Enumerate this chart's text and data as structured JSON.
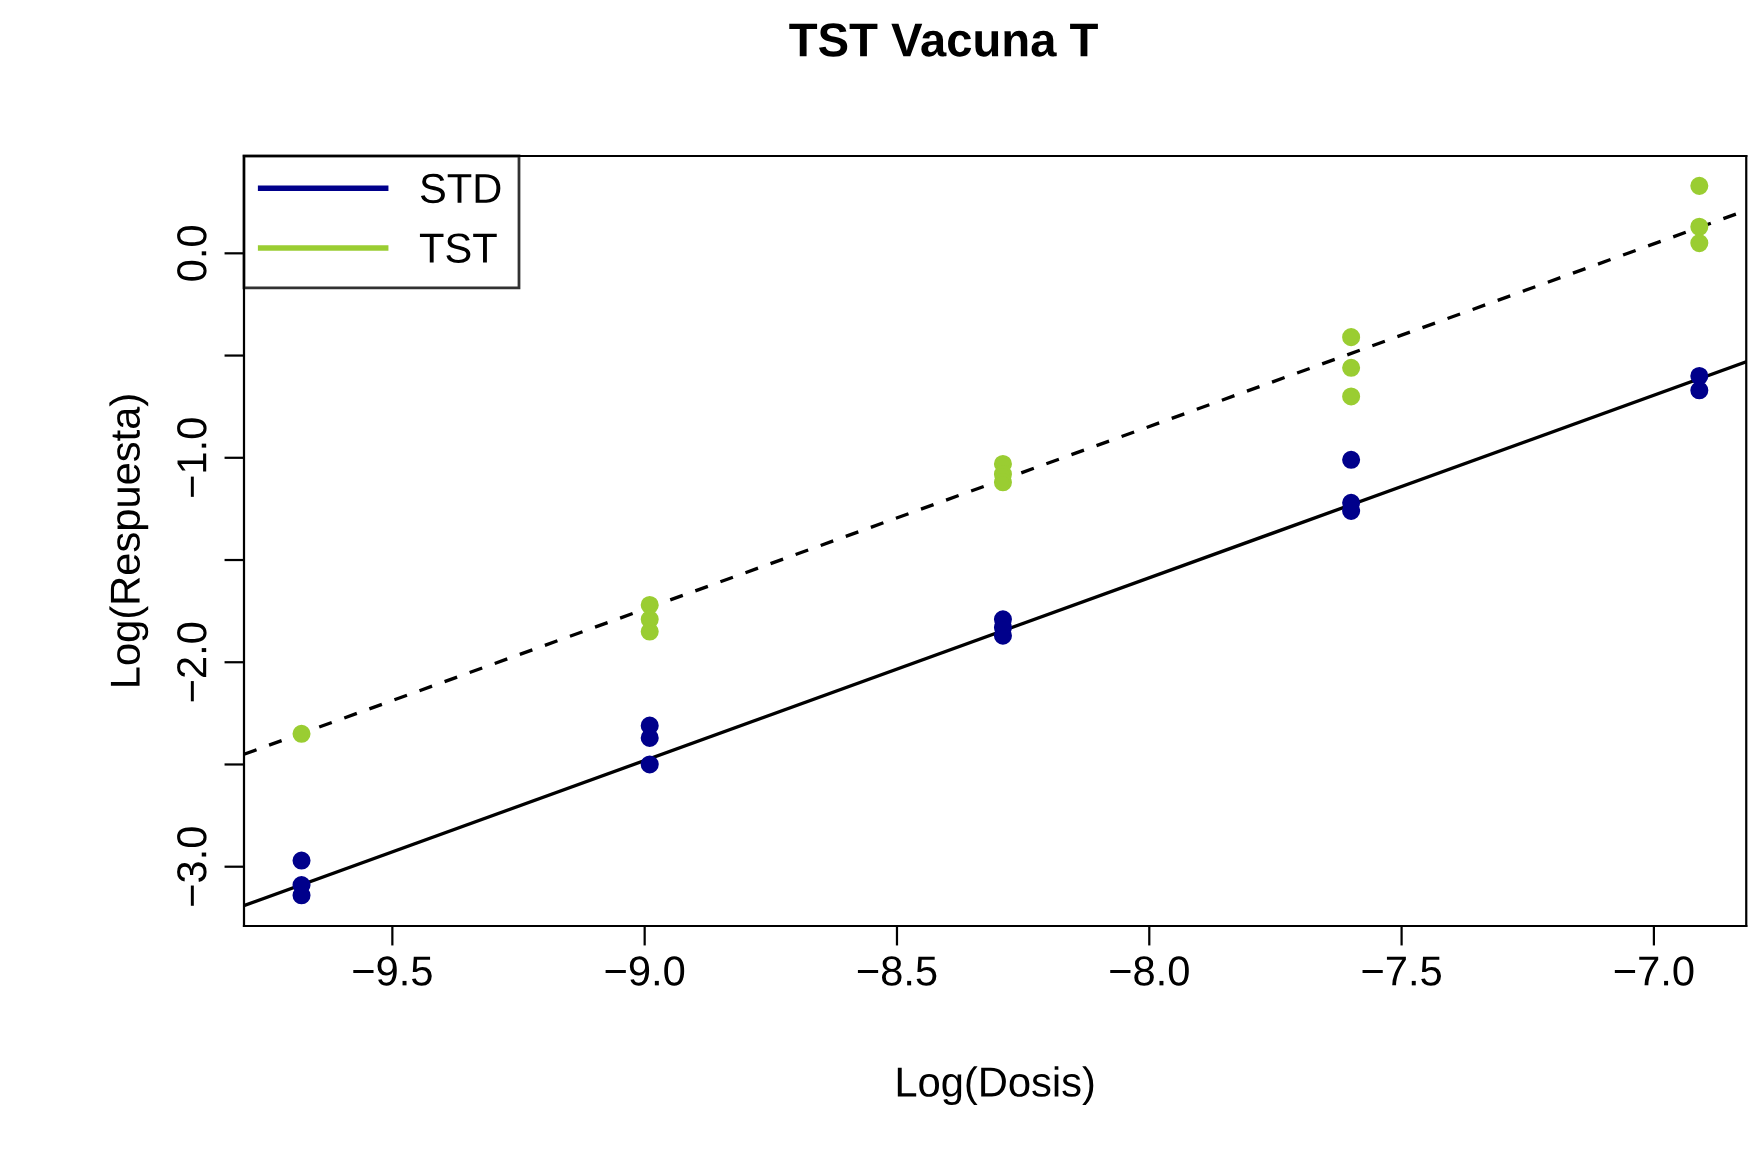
{
  "chart_data": {
    "type": "scatter",
    "title": "TST Vacuna T",
    "xlabel": "Log(Dosis)",
    "ylabel": "Log(Respuesta)",
    "xlim": [
      -9.794,
      -6.817
    ],
    "ylim": [
      -3.29,
      0.476
    ],
    "xticks": [
      {
        "value": -9.5,
        "label": "−9.5"
      },
      {
        "value": -9.0,
        "label": "−9.0"
      },
      {
        "value": -8.5,
        "label": "−8.5"
      },
      {
        "value": -8.0,
        "label": "−8.0"
      },
      {
        "value": -7.5,
        "label": "−7.5"
      },
      {
        "value": -7.0,
        "label": "−7.0"
      }
    ],
    "yticks": [
      {
        "value": 0.0,
        "label": "0.0"
      },
      {
        "value": -0.5,
        "label": null
      },
      {
        "value": -1.0,
        "label": "−1.0"
      },
      {
        "value": -1.5,
        "label": null
      },
      {
        "value": -2.0,
        "label": "−2.0"
      },
      {
        "value": -2.5,
        "label": null
      },
      {
        "value": -3.0,
        "label": "−3.0"
      }
    ],
    "grid": false,
    "legend": "top left",
    "series": [
      {
        "name": "STD",
        "color": "#00008b",
        "marker": "circle",
        "x": [
          -9.68,
          -9.68,
          -9.68,
          -8.99,
          -8.99,
          -8.99,
          -8.29,
          -8.29,
          -8.29,
          -7.6,
          -7.6,
          -7.6,
          -6.91,
          -6.91
        ],
        "values": [
          -2.97,
          -3.09,
          -3.14,
          -2.31,
          -2.37,
          -2.5,
          -1.79,
          -1.83,
          -1.87,
          -1.01,
          -1.22,
          -1.26,
          -0.6,
          -0.67
        ]
      },
      {
        "name": "TST",
        "color": "#9acd32",
        "marker": "circle",
        "x": [
          -9.68,
          -8.99,
          -8.99,
          -8.99,
          -8.29,
          -8.29,
          -8.29,
          -7.6,
          -7.6,
          -7.6,
          -6.91,
          -6.91,
          -6.91
        ],
        "values": [
          -2.35,
          -1.72,
          -1.79,
          -1.85,
          -1.03,
          -1.08,
          -1.12,
          -0.41,
          -0.56,
          -0.7,
          0.33,
          0.13,
          0.05
        ]
      },
      {
        "type": "line",
        "color": "#000000",
        "marker": "none",
        "line_style": "solid",
        "x": [
          -9.794,
          -6.817
        ],
        "values": [
          -3.19,
          -0.53
        ]
      },
      {
        "type": "line",
        "color": "#000000",
        "marker": "none",
        "line_style": "dashed",
        "x": [
          -9.794,
          -6.817
        ],
        "values": [
          -2.45,
          0.21
        ]
      }
    ]
  }
}
